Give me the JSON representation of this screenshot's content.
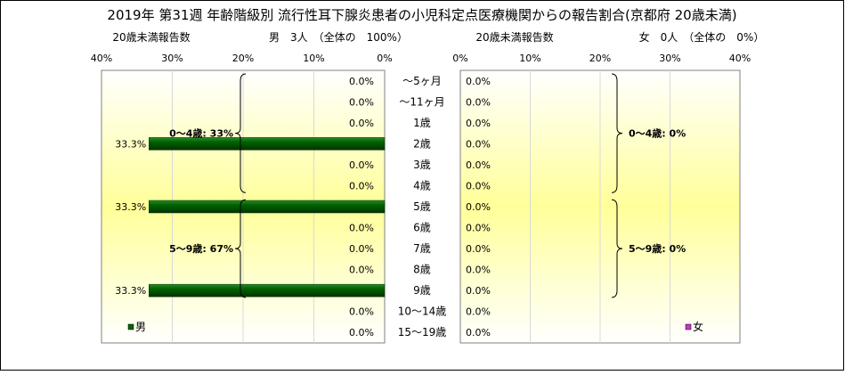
{
  "title": "2019年 第31週 年齢階級別 流行性耳下腺炎患者の小児科定点医療機関からの報告割合(京都府 20歳未満)",
  "left_header": {
    "caption": "20歳未満報告数",
    "summary": "男　3人　（全体の　100%）"
  },
  "right_header": {
    "caption": "20歳未満報告数",
    "summary": "女　0人　（全体の　0%）"
  },
  "colors": {
    "male_bar": "#006400",
    "female_marker": "#cc33cc",
    "plot_bg_center": "#ffff99"
  },
  "chart_data": [
    {
      "type": "bar",
      "orientation": "horizontal-reversed",
      "series": [
        {
          "name": "男",
          "values": [
            0,
            0,
            0,
            33.3,
            0,
            0,
            33.3,
            0,
            0,
            0,
            33.3,
            0,
            0
          ]
        }
      ],
      "categories": [
        "～5ヶ月",
        "～11ヶ月",
        "1歳",
        "2歳",
        "3歳",
        "4歳",
        "5歳",
        "6歳",
        "7歳",
        "8歳",
        "9歳",
        "10～14歳",
        "15～19歳"
      ],
      "data_labels": [
        "0.0%",
        "0.0%",
        "0.0%",
        "33.3%",
        "0.0%",
        "0.0%",
        "33.3%",
        "0.0%",
        "0.0%",
        "0.0%",
        "33.3%",
        "0.0%",
        "0.0%"
      ],
      "xlim": [
        0,
        40
      ],
      "x_ticks": [
        "40%",
        "30%",
        "20%",
        "10%",
        "0%"
      ],
      "annotations": [
        {
          "text": "0～4歳: 33%",
          "from": 0,
          "to": 5
        },
        {
          "text": "5～9歳: 67%",
          "from": 6,
          "to": 10
        }
      ],
      "legend": "男"
    },
    {
      "type": "bar",
      "orientation": "horizontal",
      "series": [
        {
          "name": "女",
          "values": [
            0,
            0,
            0,
            0,
            0,
            0,
            0,
            0,
            0,
            0,
            0,
            0,
            0
          ]
        }
      ],
      "data_labels": [
        "0.0%",
        "0.0%",
        "0.0%",
        "0.0%",
        "0.0%",
        "0.0%",
        "0.0%",
        "0.0%",
        "0.0%",
        "0.0%",
        "0.0%",
        "0.0%",
        "0.0%"
      ],
      "xlim": [
        0,
        40
      ],
      "x_ticks": [
        "0%",
        "10%",
        "20%",
        "30%",
        "40%"
      ],
      "annotations": [
        {
          "text": "0～4歳: 0%",
          "from": 0,
          "to": 5
        },
        {
          "text": "5～9歳: 0%",
          "from": 6,
          "to": 10
        }
      ],
      "legend": "女"
    }
  ]
}
